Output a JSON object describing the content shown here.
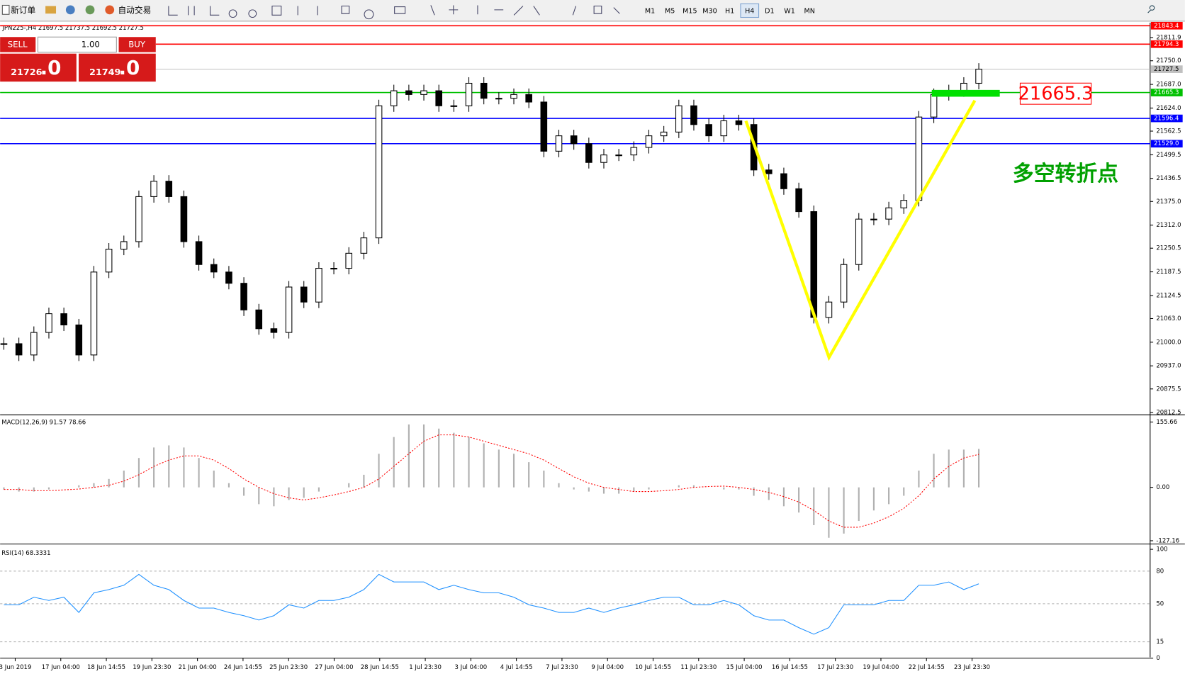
{
  "toolbar": {
    "buttons": [
      "新订单",
      "自动交易"
    ],
    "timeframes": [
      "M1",
      "M5",
      "M15",
      "M30",
      "H1",
      "H4",
      "D1",
      "W1",
      "MN"
    ],
    "active_timeframe": "H4"
  },
  "trade_panel": {
    "sell": "SELL",
    "buy": "BUY",
    "lot": "1.00",
    "bid": "21726",
    "bid_big": ".0",
    "ask": "21749",
    "ask_big": ".0"
  },
  "chart_data": {
    "type": "candlestick",
    "header": "JPN225-,H4  21697.5 21737.5 21692.5 21727.5",
    "closes": [
      20996,
      20966,
      21026,
      21076,
      21046,
      20966,
      21187,
      21248,
      21268,
      21388,
      21429,
      21388,
      21268,
      21207,
      21187,
      21157,
      21086,
      21036,
      21026,
      21147,
      21107,
      21197,
      21197,
      21237,
      21278,
      21630,
      21670,
      21660,
      21670,
      21630,
      21630,
      21690,
      21650,
      21650,
      21660,
      21640,
      21509,
      21550,
      21529,
      21479,
      21499,
      21499,
      21519,
      21550,
      21560,
      21630,
      21580,
      21550,
      21590,
      21580,
      21459,
      21449,
      21409,
      21348,
      21066,
      21107,
      21207,
      21328,
      21328,
      21358,
      21378,
      21600,
      21660,
      21670,
      21690,
      21727.5
    ],
    "ylim": [
      20808.5,
      21851.5
    ],
    "yticks": [
      21811.9,
      {
        "value": 21750,
        "label": "21750.0"
      },
      {
        "value": 21687,
        "label": "21687.0"
      },
      {
        "value": 21624,
        "label": "21624.0"
      },
      21562.5,
      21499.5,
      21436.5,
      {
        "value": 21375,
        "label": "21375.0"
      },
      {
        "value": 21312,
        "label": "21312.0"
      },
      21250.5,
      21187.5,
      21124.5,
      {
        "value": 21063,
        "label": "21063.0"
      },
      {
        "value": 21000,
        "label": "21000.0"
      },
      {
        "value": 20937,
        "label": "20937.0"
      },
      20875.5,
      20812.5
    ],
    "levels": [
      {
        "value": 21843.4,
        "color": "#ff0000"
      },
      {
        "value": 21794.3,
        "color": "#ff0000"
      },
      {
        "value": 21727.5,
        "color": "#c0c0c0"
      },
      {
        "value": 21665.3,
        "color": "#00c000"
      },
      {
        "value": 21596.4,
        "color": "#0000ff"
      },
      {
        "value": 21529,
        "label": "21529.0",
        "color": "#0000ff"
      }
    ],
    "annotation": "多空转折点",
    "time_axis_labels": [
      "3 Jun 2019",
      "17 Jun 04:00",
      "18 Jun 14:55",
      "19 Jun 23:30",
      "21 Jun 04:00",
      "24 Jun 14:55",
      "25 Jun 23:30",
      "27 Jun 04:00",
      "28 Jun 14:55",
      "1 Jul 23:30",
      "3 Jul 04:00",
      "4 Jul 14:55",
      "7 Jul 23:30",
      "9 Jul 04:00",
      "10 Jul 14:55",
      "11 Jul 23:30",
      "15 Jul 04:00",
      "16 Jul 14:55",
      "17 Jul 23:30",
      "19 Jul 04:00",
      "22 Jul 14:55",
      "23 Jul 23:30"
    ],
    "macd": {
      "label": "MACD(12,26,9) 91.57 78.66",
      "ylim": [
        -131.4,
        165.6
      ],
      "yticks": [
        155.66,
        {
          "value": 0,
          "label": "0.00"
        },
        -127.16
      ],
      "histogram": [
        -5,
        -10,
        -10,
        -5,
        0,
        5,
        10,
        20,
        40,
        70,
        95,
        100,
        95,
        70,
        40,
        10,
        -20,
        -40,
        -45,
        -30,
        -25,
        -10,
        0,
        10,
        30,
        80,
        120,
        150,
        150,
        140,
        130,
        120,
        105,
        90,
        80,
        60,
        40,
        10,
        -5,
        -10,
        -15,
        -15,
        -10,
        -5,
        0,
        5,
        5,
        0,
        -5,
        -5,
        -20,
        -30,
        -45,
        -60,
        -90,
        -120,
        -110,
        -80,
        -55,
        -40,
        -20,
        40,
        80,
        90,
        90,
        91.57
      ],
      "signal": [
        -5,
        -5,
        -8,
        -8,
        -6,
        -4,
        0,
        5,
        15,
        30,
        50,
        65,
        75,
        75,
        65,
        45,
        20,
        0,
        -15,
        -25,
        -30,
        -25,
        -18,
        -10,
        0,
        20,
        50,
        80,
        110,
        125,
        125,
        120,
        110,
        100,
        90,
        80,
        65,
        45,
        25,
        10,
        0,
        -5,
        -10,
        -10,
        -8,
        -5,
        0,
        2,
        3,
        0,
        -5,
        -12,
        -22,
        -35,
        -55,
        -80,
        -95,
        -95,
        -85,
        -70,
        -50,
        -20,
        20,
        50,
        70,
        78.66
      ]
    },
    "rsi": {
      "label": "RSI(14) 68.3331",
      "ylim": [
        0,
        100
      ],
      "yticks": [
        100,
        80,
        50,
        15,
        0
      ],
      "values": [
        49,
        49,
        56,
        53,
        56,
        42,
        60,
        63,
        67,
        77,
        67,
        63,
        53,
        46,
        46,
        42,
        39,
        35,
        39,
        49,
        46,
        53,
        53,
        56,
        63,
        77,
        70,
        70,
        70,
        63,
        67,
        63,
        60,
        60,
        56,
        49,
        46,
        42,
        42,
        46,
        42,
        46,
        49,
        53,
        56,
        56,
        49,
        49,
        53,
        49,
        39,
        35,
        35,
        28,
        22,
        28,
        49,
        49,
        49,
        53,
        53,
        67,
        67,
        70,
        63,
        68.3331
      ]
    }
  }
}
